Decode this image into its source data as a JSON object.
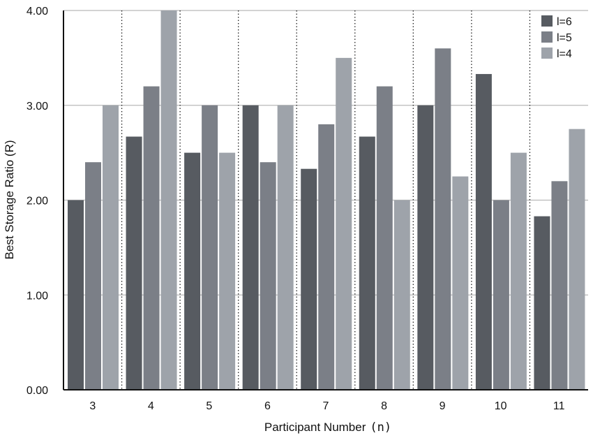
{
  "chart_data": {
    "type": "bar",
    "categories": [
      "3",
      "4",
      "5",
      "6",
      "7",
      "8",
      "9",
      "10",
      "11"
    ],
    "series": [
      {
        "name": "l=6",
        "color": "#575b61",
        "values": [
          2.0,
          2.67,
          2.5,
          3.0,
          2.33,
          2.67,
          3.0,
          3.33,
          1.83
        ]
      },
      {
        "name": "l=5",
        "color": "#7b7f87",
        "values": [
          2.4,
          3.2,
          3.0,
          2.4,
          2.8,
          3.2,
          3.6,
          2.0,
          2.2
        ]
      },
      {
        "name": "l=4",
        "color": "#9ea3aa",
        "values": [
          3.0,
          4.0,
          2.5,
          3.0,
          3.5,
          2.0,
          2.25,
          2.5,
          2.75
        ]
      }
    ],
    "yticks": [
      "0.00",
      "1.00",
      "2.00",
      "3.00",
      "4.00"
    ],
    "ylim": [
      0,
      4
    ],
    "xlabel": "Participant Number",
    "xlabel_symbol": "(n)",
    "ylabel": "Best Storage Ratio (R)",
    "legend_position": "top-right",
    "grid": "horizontal solid, vertical dotted between categories"
  }
}
